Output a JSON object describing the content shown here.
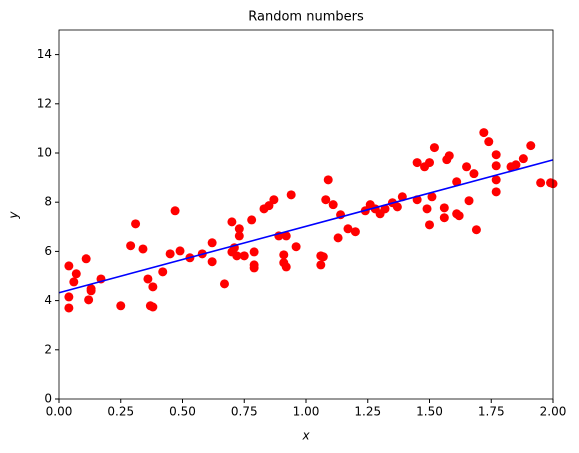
{
  "chart_data": {
    "type": "scatter",
    "title": "Random numbers",
    "xlabel": "x",
    "ylabel": "y",
    "x": [
      0.04,
      0.04,
      0.04,
      0.06,
      0.07,
      0.11,
      0.12,
      0.13,
      0.13,
      0.17,
      0.25,
      0.29,
      0.31,
      0.34,
      0.36,
      0.37,
      0.38,
      0.38,
      0.42,
      0.45,
      0.47,
      0.49,
      0.53,
      0.58,
      0.62,
      0.62,
      0.67,
      0.7,
      0.7,
      0.71,
      0.72,
      0.73,
      0.73,
      0.75,
      0.78,
      0.79,
      0.79,
      0.79,
      0.83,
      0.85,
      0.87,
      0.89,
      0.91,
      0.92,
      0.91,
      0.92,
      0.94,
      0.96,
      1.06,
      1.06,
      1.07,
      1.08,
      1.09,
      1.11,
      1.13,
      1.14,
      1.17,
      1.2,
      1.24,
      1.26,
      1.28,
      1.3,
      1.32,
      1.35,
      1.37,
      1.39,
      1.45,
      1.45,
      1.49,
      1.48,
      1.5,
      1.5,
      1.51,
      1.52,
      1.56,
      1.56,
      1.57,
      1.58,
      1.61,
      1.61,
      1.62,
      1.65,
      1.66,
      1.68,
      1.69,
      1.72,
      1.74,
      1.77,
      1.77,
      1.77,
      1.77,
      1.83,
      1.85,
      1.88,
      1.91,
      1.95,
      1.99,
      2.0
    ],
    "y": [
      4.15,
      5.41,
      3.7,
      4.76,
      5.09,
      5.7,
      4.03,
      4.48,
      4.4,
      4.88,
      3.79,
      6.23,
      7.12,
      6.1,
      4.88,
      3.79,
      3.74,
      4.56,
      5.17,
      5.9,
      7.65,
      6.02,
      5.74,
      5.9,
      5.58,
      6.35,
      4.68,
      7.2,
      5.98,
      6.15,
      5.82,
      6.63,
      6.92,
      5.82,
      7.28,
      5.33,
      5.45,
      5.98,
      7.73,
      7.86,
      8.1,
      6.63,
      5.54,
      5.37,
      5.86,
      6.63,
      8.3,
      6.19,
      5.82,
      5.45,
      5.78,
      8.1,
      8.91,
      7.9,
      6.55,
      7.49,
      6.92,
      6.8,
      7.65,
      7.9,
      7.73,
      7.53,
      7.73,
      7.98,
      7.81,
      8.22,
      9.61,
      8.1,
      7.73,
      9.44,
      9.61,
      7.08,
      8.22,
      10.22,
      7.77,
      7.37,
      9.73,
      9.89,
      8.83,
      7.53,
      7.45,
      9.44,
      8.06,
      9.16,
      6.88,
      10.83,
      10.46,
      9.93,
      8.42,
      8.91,
      9.48,
      9.44,
      9.52,
      9.77,
      10.3,
      8.79,
      8.79,
      8.75
    ],
    "color": "#ff0000",
    "fit": {
      "x": [
        0,
        2
      ],
      "y": [
        4.32,
        9.72
      ],
      "color": "#0000ff"
    },
    "xlim": [
      0,
      2
    ],
    "ylim": [
      0,
      15
    ],
    "xticks": [
      {
        "value": 0,
        "label": "0.00"
      },
      {
        "value": 0.25,
        "label": "0.25"
      },
      {
        "value": 0.5,
        "label": "0.50"
      },
      {
        "value": 0.75,
        "label": "0.75"
      },
      {
        "value": 1,
        "label": "1.00"
      },
      {
        "value": 1.25,
        "label": "1.25"
      },
      {
        "value": 1.5,
        "label": "1.50"
      },
      {
        "value": 1.75,
        "label": "1.75"
      },
      {
        "value": 2,
        "label": "2.00"
      }
    ],
    "yticks": [
      0,
      2,
      4,
      6,
      8,
      10,
      12,
      14
    ]
  }
}
